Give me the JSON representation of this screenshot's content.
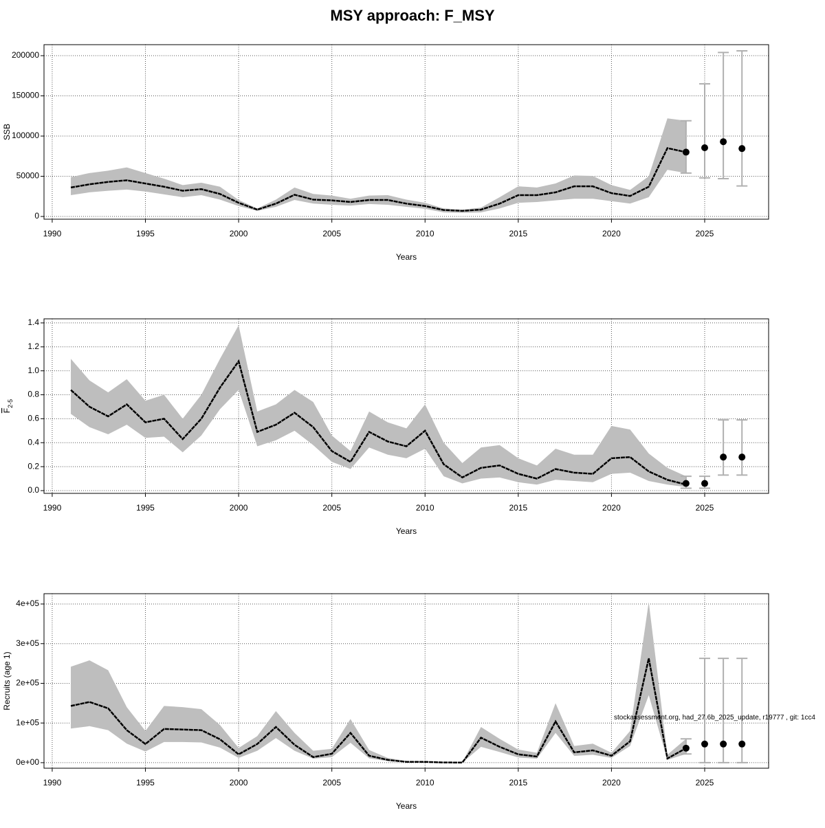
{
  "title": "MSY approach: F_MSY",
  "chart_data": [
    {
      "type": "line",
      "y_label": "SSB",
      "x_label": "Years",
      "color": "#000000",
      "band_color": "#bebebe",
      "bar_color": "#b0b0b0",
      "xlim": [
        1989.56,
        2028.43
      ],
      "xticks": [
        1990,
        1995,
        2000,
        2005,
        2010,
        2015,
        2020,
        2025
      ],
      "ylim": [
        -3400,
        213700
      ],
      "yticks": [
        0,
        50000,
        100000,
        150000,
        200000
      ],
      "grid": true,
      "x": [
        1991,
        1992,
        1993,
        1994,
        1995,
        1996,
        1997,
        1998,
        1999,
        2000,
        2001,
        2002,
        2003,
        2004,
        2005,
        2006,
        2007,
        2008,
        2009,
        2010,
        2011,
        2012,
        2013,
        2014,
        2015,
        2016,
        2017,
        2018,
        2019,
        2020,
        2021,
        2022,
        2023,
        2024
      ],
      "values": [
        36000,
        40000,
        43000,
        45000,
        41000,
        37000,
        32000,
        34000,
        28000,
        17000,
        8500,
        16000,
        27000,
        21000,
        20000,
        18000,
        20500,
        20500,
        16000,
        13000,
        8000,
        7000,
        8500,
        16000,
        26500,
        26500,
        30000,
        37500,
        37500,
        29000,
        25500,
        37000,
        85000,
        80000
      ],
      "high": [
        49000,
        54000,
        57000,
        61000,
        54000,
        47000,
        39000,
        42000,
        37000,
        20500,
        10000,
        21000,
        36000,
        28000,
        26000,
        22000,
        26000,
        26500,
        21000,
        17000,
        10000,
        8500,
        11000,
        24000,
        37500,
        36000,
        41000,
        51000,
        50500,
        39000,
        33000,
        50000,
        122000,
        119000
      ],
      "low": [
        26500,
        30000,
        32000,
        33500,
        31000,
        27500,
        24000,
        26500,
        21000,
        13000,
        7000,
        12000,
        20500,
        16000,
        14500,
        13500,
        15500,
        14500,
        12000,
        9500,
        5000,
        4500,
        5000,
        10000,
        17000,
        18000,
        20000,
        22000,
        22000,
        19000,
        16000,
        24000,
        58000,
        54000
      ],
      "forecast": {
        "x": [
          2024,
          2025,
          2026,
          2027
        ],
        "values": [
          80000,
          85500,
          93000,
          84500
        ],
        "low": [
          54000,
          48000,
          47000,
          38000
        ],
        "high": [
          119000,
          165000,
          204000,
          206000
        ]
      }
    },
    {
      "type": "line",
      "y_label": "F",
      "y_label_sub": "2-5",
      "x_label": "Years",
      "color": "#000000",
      "band_color": "#bebebe",
      "bar_color": "#b0b0b0",
      "xlim": [
        1989.56,
        2028.43
      ],
      "xticks": [
        1990,
        1995,
        2000,
        2005,
        2010,
        2015,
        2020,
        2025
      ],
      "ylim": [
        -0.023,
        1.434
      ],
      "yticks": [
        {
          "value": 0,
          "label": "0.0"
        },
        0.2,
        0.4,
        0.6,
        0.8,
        {
          "value": 1,
          "label": "1.0"
        },
        1.2,
        1.4
      ],
      "grid": true,
      "x": [
        1991,
        1992,
        1993,
        1994,
        1995,
        1996,
        1997,
        1998,
        1999,
        2000,
        2001,
        2002,
        2003,
        2004,
        2005,
        2006,
        2007,
        2008,
        2009,
        2010,
        2011,
        2012,
        2013,
        2014,
        2015,
        2016,
        2017,
        2018,
        2019,
        2020,
        2021,
        2022,
        2023,
        2024
      ],
      "values": [
        0.84,
        0.7,
        0.62,
        0.72,
        0.57,
        0.6,
        0.43,
        0.6,
        0.86,
        1.08,
        0.49,
        0.55,
        0.65,
        0.53,
        0.33,
        0.24,
        0.49,
        0.41,
        0.37,
        0.5,
        0.22,
        0.11,
        0.19,
        0.21,
        0.14,
        0.1,
        0.18,
        0.15,
        0.14,
        0.27,
        0.28,
        0.16,
        0.09,
        0.05
      ],
      "high": [
        1.1,
        0.92,
        0.82,
        0.93,
        0.75,
        0.8,
        0.6,
        0.8,
        1.1,
        1.38,
        0.66,
        0.72,
        0.84,
        0.74,
        0.46,
        0.33,
        0.66,
        0.57,
        0.52,
        0.72,
        0.4,
        0.23,
        0.36,
        0.38,
        0.27,
        0.21,
        0.35,
        0.3,
        0.3,
        0.54,
        0.51,
        0.31,
        0.19,
        0.12
      ],
      "low": [
        0.64,
        0.53,
        0.47,
        0.55,
        0.44,
        0.45,
        0.32,
        0.46,
        0.68,
        0.84,
        0.37,
        0.42,
        0.5,
        0.38,
        0.24,
        0.18,
        0.36,
        0.3,
        0.27,
        0.35,
        0.12,
        0.06,
        0.1,
        0.11,
        0.07,
        0.05,
        0.09,
        0.08,
        0.07,
        0.14,
        0.15,
        0.08,
        0.05,
        0.03
      ],
      "forecast": {
        "x": [
          2024,
          2025,
          2026,
          2027
        ],
        "values": [
          0.06,
          0.06,
          0.28,
          0.28
        ],
        "low": [
          0.02,
          0.02,
          0.13,
          0.13
        ],
        "high": [
          0.12,
          0.12,
          0.59,
          0.59
        ]
      }
    },
    {
      "type": "line",
      "y_label": "Recruits (age 1)",
      "x_label": "Years",
      "color": "#000000",
      "band_color": "#bebebe",
      "bar_color": "#b0b0b0",
      "annotation": "stockassessment.org, had_27.6b_2025_update, r19777 , git: 1cc4",
      "xlim": [
        1989.56,
        2028.43
      ],
      "xticks": [
        1990,
        1995,
        2000,
        2005,
        2010,
        2015,
        2020,
        2025
      ],
      "ylim": [
        -14000,
        426000
      ],
      "yticks": [
        {
          "value": 0,
          "label": "0e+00"
        },
        {
          "value": 100000,
          "label": "1e+05"
        },
        {
          "value": 200000,
          "label": "2e+05"
        },
        {
          "value": 300000,
          "label": "3e+05"
        },
        {
          "value": 400000,
          "label": "4e+05"
        }
      ],
      "grid": true,
      "x": [
        1991,
        1992,
        1993,
        1994,
        1995,
        1996,
        1997,
        1998,
        1999,
        2000,
        2001,
        2002,
        2003,
        2004,
        2005,
        2006,
        2007,
        2008,
        2009,
        2010,
        2011,
        2012,
        2013,
        2014,
        2015,
        2016,
        2017,
        2018,
        2019,
        2020,
        2021,
        2022,
        2023,
        2024
      ],
      "values": [
        143000,
        153000,
        137000,
        82000,
        47000,
        85000,
        83500,
        82000,
        59000,
        21000,
        47000,
        90000,
        45000,
        14000,
        22500,
        75000,
        17500,
        7000,
        2000,
        2000,
        500,
        300,
        63000,
        40000,
        21000,
        15500,
        104000,
        26000,
        31000,
        17500,
        54000,
        263000,
        10500,
        36500
      ],
      "high": [
        242000,
        258000,
        233000,
        140000,
        80000,
        143000,
        140000,
        135000,
        95000,
        37000,
        67000,
        130000,
        75000,
        30000,
        35000,
        110000,
        32000,
        12000,
        4000,
        3000,
        1500,
        1000,
        90000,
        60000,
        33000,
        25000,
        150000,
        42000,
        48000,
        25000,
        80000,
        405000,
        20000,
        60000
      ],
      "low": [
        86000,
        92000,
        82000,
        48000,
        28000,
        52000,
        52000,
        51000,
        38000,
        12000,
        30000,
        62000,
        30000,
        10000,
        14000,
        50000,
        11000,
        4000,
        1000,
        1000,
        200,
        100,
        40000,
        27000,
        13000,
        10000,
        75000,
        17000,
        20000,
        12000,
        42000,
        170000,
        7000,
        22000
      ],
      "forecast": {
        "x": [
          2024,
          2025,
          2026,
          2027
        ],
        "values": [
          36500,
          47000,
          47000,
          47000
        ],
        "low": [
          22000,
          0,
          0,
          0
        ],
        "high": [
          60000,
          263000,
          263000,
          263000
        ]
      }
    }
  ]
}
